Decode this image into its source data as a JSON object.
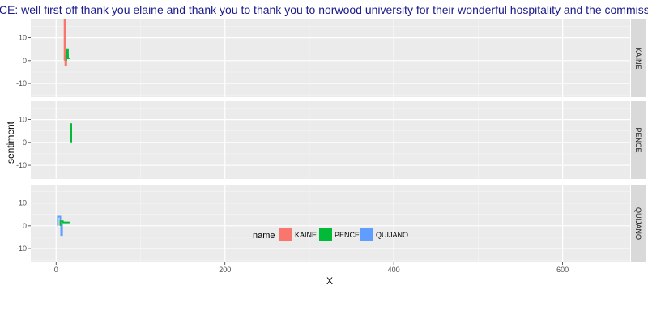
{
  "chart_data": {
    "type": "line",
    "title": "PENCE: well first off thank you elaine and thank you to thank you to norwood university for their wonderful hospitality and the commission on",
    "xlabel": "X",
    "ylabel": "sentiment",
    "xlim": [
      -30,
      680
    ],
    "ylim": [
      -16,
      18
    ],
    "x_ticks": [
      0,
      200,
      400,
      600
    ],
    "y_ticks": [
      -10,
      0,
      10
    ],
    "facet_by": "name",
    "grid": true,
    "legend": {
      "title": "name",
      "position": "bottom",
      "entries": [
        "KAINE",
        "PENCE",
        "QUIJANO"
      ]
    },
    "colors": {
      "KAINE": "#F8766D",
      "PENCE": "#00BA38",
      "QUIJANO": "#619CFF",
      "panel_bg": "#EBEBEB",
      "strip_bg": "#D9D9D9"
    },
    "panels": [
      {
        "name": "KAINE",
        "series": [
          {
            "name": "KAINE",
            "x": [
              10,
              10,
              11,
              11,
              12,
              12,
              13,
              13,
              14,
              14,
              15
            ],
            "y": [
              0,
              18,
              18,
              -2,
              -2,
              3,
              3,
              1,
              1,
              2,
              2
            ]
          },
          {
            "name": "PENCE",
            "x": [
              12,
              12,
              13,
              13,
              14,
              14,
              16
            ],
            "y": [
              0,
              2,
              2,
              5,
              5,
              1,
              1
            ]
          }
        ]
      },
      {
        "name": "PENCE",
        "series": [
          {
            "name": "PENCE",
            "x": [
              17,
              17,
              18,
              18
            ],
            "y": [
              0,
              8,
              8,
              0
            ]
          }
        ]
      },
      {
        "name": "QUIJANO",
        "series": [
          {
            "name": "QUIJANO",
            "x": [
              2,
              2,
              5,
              5,
              6,
              6,
              7,
              7
            ],
            "y": [
              0,
              4,
              4,
              1,
              1,
              -4,
              -4,
              1
            ]
          },
          {
            "name": "PENCE",
            "x": [
              5,
              5,
              8,
              8,
              16
            ],
            "y": [
              0,
              2,
              2,
              1.5,
              1.5
            ]
          }
        ]
      }
    ]
  }
}
